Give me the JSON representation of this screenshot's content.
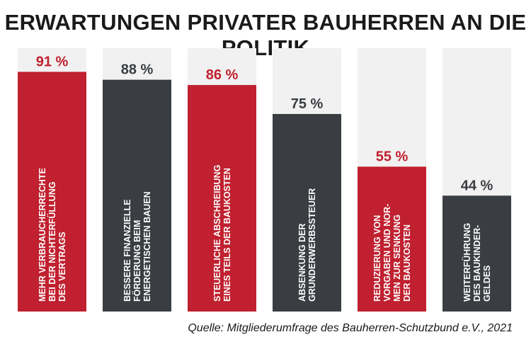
{
  "title": "ERWARTUNGEN PRIVATER BAUHERREN AN DIE POLITIK",
  "source": "Quelle: Mitgliederumfrage des Bauherren-Schutzbund e.V., 2021",
  "colors": {
    "red": "#c0202f",
    "dark": "#3a3d42",
    "track": "#f1f1f1",
    "value_red": "#c0202f",
    "value_dark": "#3a3d42"
  },
  "chart_data": {
    "type": "bar",
    "title": "ERWARTUNGEN PRIVATER BAUHERREN AN DIE POLITIK",
    "ylim": [
      0,
      100
    ],
    "value_labels": [
      "91 %",
      "88 %",
      "86 %",
      "75 %",
      "55 %",
      "44 %"
    ],
    "values": [
      91,
      88,
      86,
      75,
      55,
      44
    ],
    "bar_colors": [
      "red",
      "dark",
      "red",
      "dark",
      "red",
      "dark"
    ],
    "categories": [
      [
        "MEHR VERBRAUCHERRECHTE",
        "BEI DER NICHTERFÜLLUNG",
        "DES VERTRAGS"
      ],
      [
        "BESSERE FINANZIELLE",
        "FÖRDERUNG BEIM",
        "ENERGETISCHEN BAUEN"
      ],
      [
        "STEUERLICHE ABSCHREIBUNG",
        "EINES TEILS DER BAUKOSTEN"
      ],
      [
        "ABSENKUNG DER",
        "GRUNDERWERBSSTEUER"
      ],
      [
        "REDUZIERUNG VON",
        "VORGABEN UND NOR-",
        "MEN ZUR SENKUNG",
        "DER BAUKOSTEN"
      ],
      [
        "WEITERFÜHRUNG",
        "DES BAUKINDER-",
        "GELDES"
      ]
    ]
  }
}
